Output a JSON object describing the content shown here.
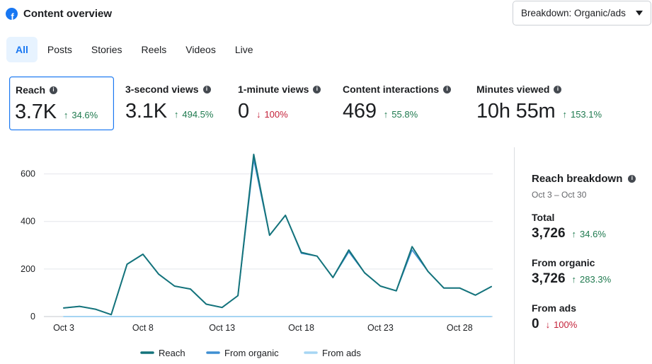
{
  "header": {
    "title": "Content overview",
    "fb_letter": "f"
  },
  "breakdown": {
    "label": "Breakdown: Organic/ads"
  },
  "tabs": [
    "All",
    "Posts",
    "Stories",
    "Reels",
    "Videos",
    "Live"
  ],
  "metrics": [
    {
      "label": "Reach",
      "value": "3.7K",
      "arrow": "↑",
      "delta": "34.6%",
      "direction": "up"
    },
    {
      "label": "3-second views",
      "value": "3.1K",
      "arrow": "↑",
      "delta": "494.5%",
      "direction": "up"
    },
    {
      "label": "1-minute views",
      "value": "0",
      "arrow": "↓",
      "delta": "100%",
      "direction": "down"
    },
    {
      "label": "Content interactions",
      "value": "469",
      "arrow": "↑",
      "delta": "55.8%",
      "direction": "up"
    },
    {
      "label": "Minutes viewed",
      "value": "10h 55m",
      "arrow": "↑",
      "delta": "153.1%",
      "direction": "up"
    }
  ],
  "info_glyph": "i",
  "breakdown_panel": {
    "title": "Reach breakdown",
    "date_range": "Oct 3 – Oct 30",
    "total": {
      "label": "Total",
      "value": "3,726",
      "arrow": "↑",
      "delta": "34.6%"
    },
    "organic": {
      "label": "From organic",
      "value": "3,726",
      "arrow": "↑",
      "delta": "283.3%"
    },
    "ads": {
      "label": "From ads",
      "value": "0",
      "arrow": "↓",
      "delta": "100%"
    }
  },
  "colors": {
    "reach": "#14737b",
    "organic": "#3f8fd2",
    "ads": "#a6d5f3",
    "up": "#1f7a4f",
    "down": "#c4223a",
    "accent": "#1877f2"
  },
  "chart_data": {
    "type": "line",
    "x": [
      "Oct 3",
      "Oct 4",
      "Oct 5",
      "Oct 6",
      "Oct 7",
      "Oct 8",
      "Oct 9",
      "Oct 10",
      "Oct 11",
      "Oct 12",
      "Oct 13",
      "Oct 14",
      "Oct 15",
      "Oct 16",
      "Oct 17",
      "Oct 18",
      "Oct 19",
      "Oct 20",
      "Oct 21",
      "Oct 22",
      "Oct 23",
      "Oct 24",
      "Oct 25",
      "Oct 26",
      "Oct 27",
      "Oct 28",
      "Oct 29",
      "Oct 30"
    ],
    "x_tick_labels": [
      "Oct 3",
      "Oct 8",
      "Oct 13",
      "Oct 18",
      "Oct 23",
      "Oct 28"
    ],
    "x_tick_indices": [
      0,
      5,
      10,
      15,
      20,
      25
    ],
    "y_ticks": [
      0,
      200,
      400,
      600
    ],
    "ylim": [
      0,
      700
    ],
    "series": [
      {
        "name": "Reach",
        "values": [
          36,
          43,
          31,
          8,
          220,
          262,
          178,
          128,
          116,
          52,
          38,
          88,
          682,
          342,
          426,
          270,
          254,
          164,
          280,
          184,
          128,
          108,
          294,
          190,
          120,
          120,
          90,
          126
        ]
      },
      {
        "name": "From organic",
        "values": [
          36,
          43,
          31,
          8,
          220,
          262,
          178,
          128,
          116,
          52,
          38,
          88,
          660,
          342,
          426,
          266,
          254,
          164,
          272,
          184,
          128,
          108,
          280,
          190,
          120,
          120,
          90,
          126
        ]
      },
      {
        "name": "From ads",
        "values": [
          0,
          0,
          0,
          0,
          0,
          0,
          0,
          0,
          0,
          0,
          0,
          0,
          0,
          0,
          0,
          0,
          0,
          0,
          0,
          0,
          0,
          0,
          0,
          0,
          0,
          0,
          0,
          0
        ]
      }
    ],
    "legend": [
      "Reach",
      "From organic",
      "From ads"
    ],
    "legend_position": "bottom"
  }
}
